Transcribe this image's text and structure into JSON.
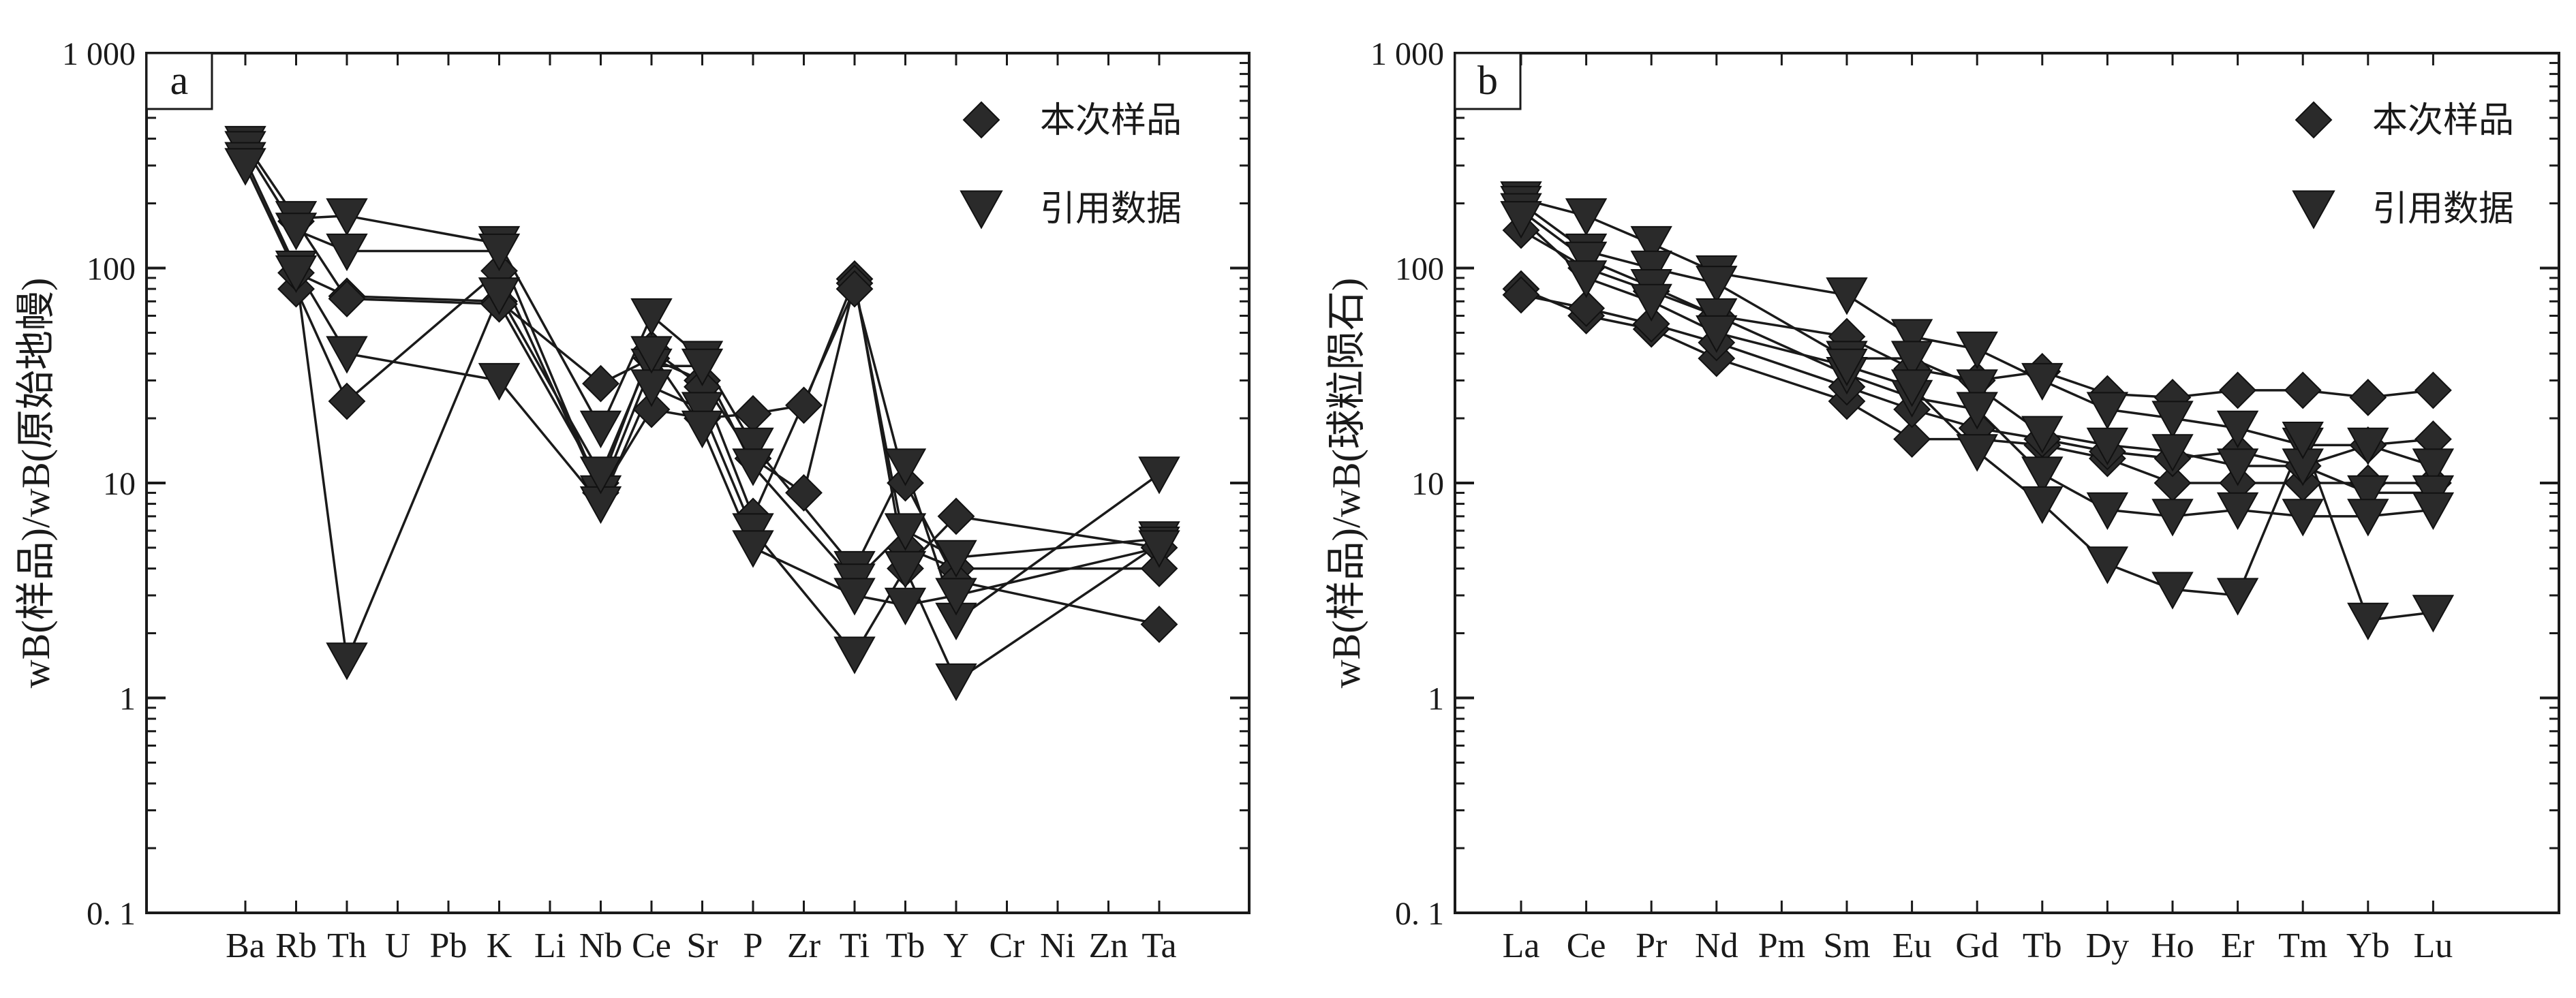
{
  "colors": {
    "ink": "#1a1a1a",
    "marker": "#2a2a2a",
    "background": "#ffffff"
  },
  "chart_data": [
    {
      "type": "line",
      "panel_label": "a",
      "yscale": "log",
      "ylim": [
        0.1,
        1000
      ],
      "ytick_values": [
        0.1,
        1,
        10,
        100,
        1000
      ],
      "ytick_labels": [
        "0. 1",
        "1",
        "10",
        "100",
        "1 000"
      ],
      "ylabel": "wB(样品)/wB(原始地幔)",
      "categories": [
        "Ba",
        "Rb",
        "Th",
        "U",
        "Pb",
        "K",
        "Li",
        "Nb",
        "Ce",
        "Sr",
        "P",
        "Zr",
        "Ti",
        "Tb",
        "Y",
        "Cr",
        "Ni",
        "Zn",
        "Ta"
      ],
      "category_pos": [
        0,
        1,
        2,
        3,
        4,
        5,
        6,
        7,
        8,
        9,
        10,
        11,
        12,
        13,
        14,
        15,
        16,
        17,
        18
      ],
      "legend": [
        {
          "label": "本次样品",
          "marker": "diamond"
        },
        {
          "label": "引用数据",
          "marker": "triangle-down"
        }
      ],
      "series": [
        {
          "name": "本次样品",
          "marker": "diamond",
          "values": [
            null,
            80,
            24,
            null,
            null,
            97,
            null,
            9,
            22,
            20,
            21,
            23,
            89,
            4,
            7,
            null,
            null,
            null,
            5
          ]
        },
        {
          "name": "本次样品",
          "marker": "diamond",
          "values": [
            null,
            95,
            74,
            null,
            null,
            70,
            null,
            29,
            38,
            30,
            13,
            9,
            85,
            5,
            4,
            null,
            null,
            null,
            4
          ]
        },
        {
          "name": "本次样品",
          "marker": "diamond",
          "values": [
            null,
            165,
            72,
            null,
            null,
            68,
            null,
            10,
            42,
            28,
            7,
            null,
            80,
            10,
            3.5,
            null,
            null,
            null,
            2.2
          ]
        },
        {
          "name": "引用数据",
          "marker": "triangle-down",
          "values": [
            380,
            170,
            175,
            null,
            null,
            130,
            null,
            18,
            60,
            38,
            15,
            null,
            4,
            12,
            2.3,
            null,
            null,
            null,
            11
          ]
        },
        {
          "name": "引用数据",
          "marker": "triangle-down",
          "values": [
            360,
            150,
            120,
            null,
            null,
            120,
            null,
            9,
            35,
            35,
            12,
            null,
            3.5,
            6,
            4.5,
            null,
            null,
            null,
            5.5
          ]
        },
        {
          "name": "引用数据",
          "marker": "triangle-down",
          "values": [
            320,
            100,
            40,
            null,
            null,
            30,
            null,
            8,
            28,
            22,
            6,
            null,
            1.6,
            4,
            1.2,
            null,
            null,
            null,
            5.2
          ]
        },
        {
          "name": "引用数据",
          "marker": "triangle-down",
          "values": [
            300,
            95,
            1.5,
            null,
            null,
            75,
            null,
            11,
            40,
            18,
            5,
            null,
            3,
            2.7,
            3,
            null,
            null,
            null,
            5
          ]
        }
      ]
    },
    {
      "type": "line",
      "panel_label": "b",
      "yscale": "log",
      "ylim": [
        0.1,
        1000
      ],
      "ytick_values": [
        0.1,
        1,
        10,
        100,
        1000
      ],
      "ytick_labels": [
        "0. 1",
        "1",
        "10",
        "100",
        "1 000"
      ],
      "ylabel": "wB(样品)/wB(球粒陨石)",
      "categories": [
        "La",
        "Ce",
        "Pr",
        "Nd",
        "Pm",
        "Sm",
        "Eu",
        "Gd",
        "Tb",
        "Dy",
        "Ho",
        "Er",
        "Tm",
        "Yb",
        "Lu"
      ],
      "category_pos": [
        0,
        1,
        2,
        3,
        4,
        5,
        6,
        7,
        8,
        9,
        10,
        11,
        12,
        13,
        14
      ],
      "legend": [
        {
          "label": "本次样品",
          "marker": "diamond"
        },
        {
          "label": "引用数据",
          "marker": "triangle-down"
        }
      ],
      "series": [
        {
          "name": "本次样品",
          "marker": "diamond",
          "values": [
            80,
            60,
            52,
            38,
            null,
            24,
            16,
            16,
            15,
            13,
            10,
            10,
            10,
            10,
            10
          ]
        },
        {
          "name": "本次样品",
          "marker": "diamond",
          "values": [
            75,
            65,
            55,
            45,
            null,
            28,
            22,
            18,
            16,
            14,
            13,
            14,
            12,
            15,
            16
          ]
        },
        {
          "name": "本次样品",
          "marker": "diamond",
          "values": [
            150,
            100,
            78,
            60,
            null,
            48,
            34,
            30,
            33,
            26,
            25,
            27,
            27,
            25,
            27
          ]
        },
        {
          "name": "引用数据",
          "marker": "triangle-down",
          "values": [
            210,
            175,
            130,
            95,
            null,
            75,
            48,
            42,
            30,
            22,
            20,
            18,
            15,
            15,
            12
          ]
        },
        {
          "name": "引用数据",
          "marker": "triangle-down",
          "values": [
            200,
            120,
            100,
            85,
            null,
            38,
            38,
            28,
            17,
            15,
            14,
            12,
            12,
            9,
            9
          ]
        },
        {
          "name": "引用数据",
          "marker": "triangle-down",
          "values": [
            185,
            110,
            82,
            60,
            null,
            32,
            25,
            22,
            11,
            7.5,
            7,
            7.5,
            7,
            7,
            7.5
          ]
        },
        {
          "name": "引用数据",
          "marker": "triangle-down",
          "values": [
            170,
            90,
            70,
            50,
            null,
            35,
            28,
            14,
            8,
            4.2,
            3.2,
            3,
            16,
            2.3,
            2.5
          ]
        }
      ]
    }
  ]
}
